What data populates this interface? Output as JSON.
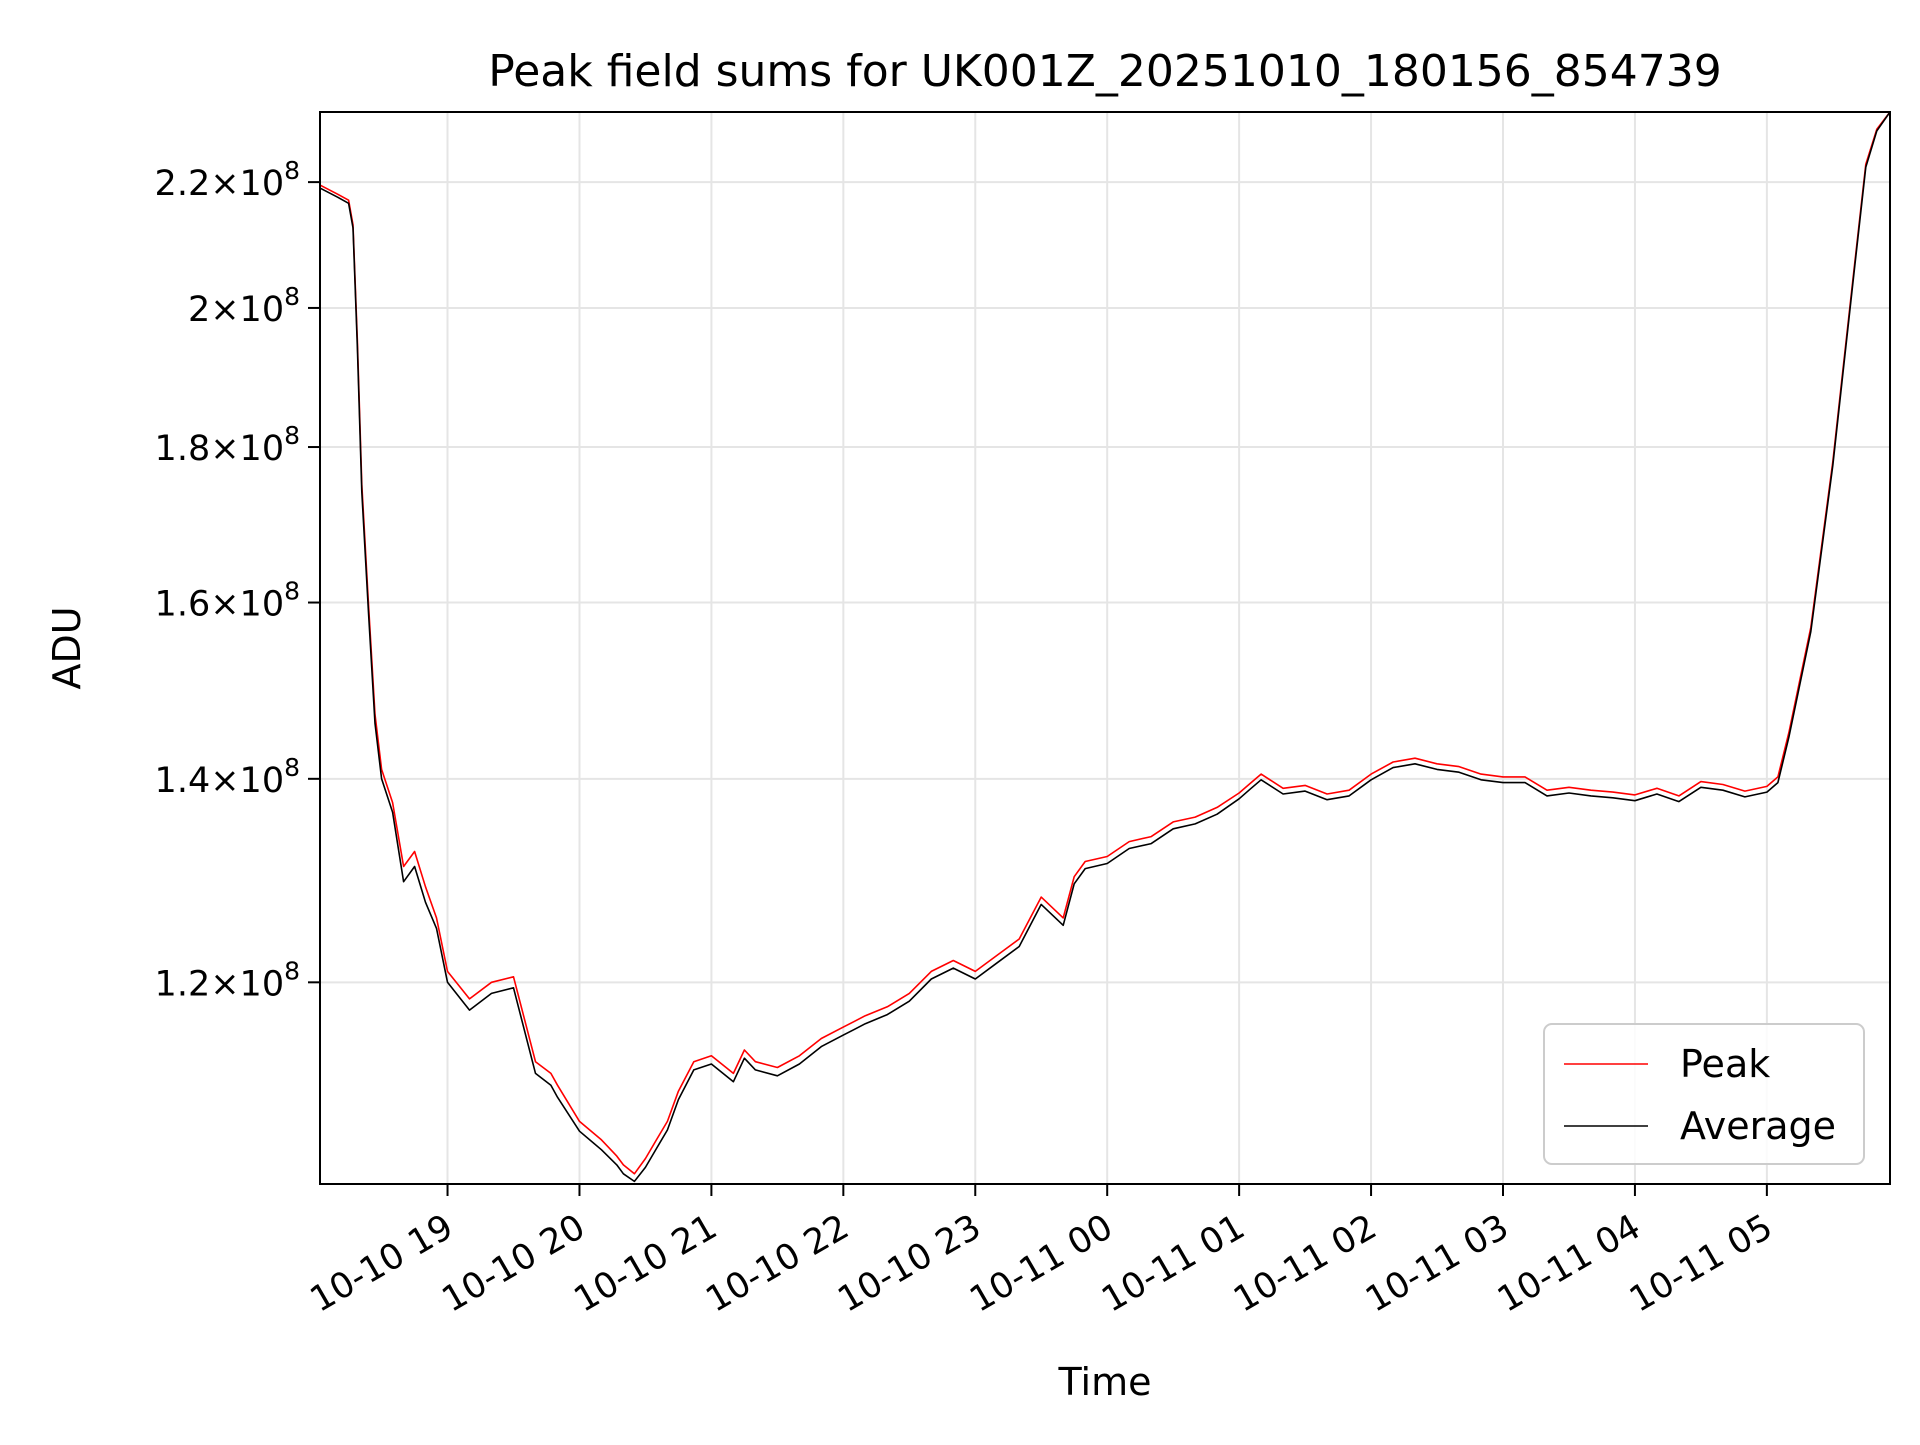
{
  "chart_data": {
    "type": "line",
    "title": "Peak field sums for UK001Z_20251010_180156_854739",
    "xlabel": "Time",
    "ylabel": "ADU",
    "yscale": "log",
    "grid": true,
    "legend_position": "lower-right",
    "xlim": [
      "2025-10-10 18:02",
      "2025-10-11 05:56"
    ],
    "ylim": [
      103000000,
      232000000
    ],
    "x_ticks": [
      {
        "value": "2025-10-10 19:00",
        "label": "10-10 19"
      },
      {
        "value": "2025-10-10 20:00",
        "label": "10-10 20"
      },
      {
        "value": "2025-10-10 21:00",
        "label": "10-10 21"
      },
      {
        "value": "2025-10-10 22:00",
        "label": "10-10 22"
      },
      {
        "value": "2025-10-10 23:00",
        "label": "10-10 23"
      },
      {
        "value": "2025-10-11 00:00",
        "label": "10-11 00"
      },
      {
        "value": "2025-10-11 01:00",
        "label": "10-11 01"
      },
      {
        "value": "2025-10-11 02:00",
        "label": "10-11 02"
      },
      {
        "value": "2025-10-11 03:00",
        "label": "10-11 03"
      },
      {
        "value": "2025-10-11 04:00",
        "label": "10-11 04"
      },
      {
        "value": "2025-10-11 05:00",
        "label": "10-11 05"
      }
    ],
    "y_ticks": [
      {
        "value": 120000000,
        "mantissa": "1.2",
        "exponent": "8"
      },
      {
        "value": 140000000,
        "mantissa": "1.4",
        "exponent": "8"
      },
      {
        "value": 160000000,
        "mantissa": "1.6",
        "exponent": "8"
      },
      {
        "value": 180000000,
        "mantissa": "1.8",
        "exponent": "8"
      },
      {
        "value": 200000000,
        "mantissa": "2",
        "exponent": "8"
      },
      {
        "value": 220000000,
        "mantissa": "2.2",
        "exponent": "8"
      }
    ],
    "series": [
      {
        "name": "Peak",
        "color": "#ff0000",
        "x": [
          "2025-10-10 18:02",
          "2025-10-10 18:10",
          "2025-10-10 18:15",
          "2025-10-10 18:17",
          "2025-10-10 18:19",
          "2025-10-10 18:21",
          "2025-10-10 18:24",
          "2025-10-10 18:27",
          "2025-10-10 18:30",
          "2025-10-10 18:35",
          "2025-10-10 18:40",
          "2025-10-10 18:45",
          "2025-10-10 18:50",
          "2025-10-10 18:55",
          "2025-10-10 19:00",
          "2025-10-10 19:10",
          "2025-10-10 19:20",
          "2025-10-10 19:30",
          "2025-10-10 19:40",
          "2025-10-10 19:47",
          "2025-10-10 19:50",
          "2025-10-10 20:00",
          "2025-10-10 20:10",
          "2025-10-10 20:17",
          "2025-10-10 20:20",
          "2025-10-10 20:25",
          "2025-10-10 20:30",
          "2025-10-10 20:35",
          "2025-10-10 20:40",
          "2025-10-10 20:45",
          "2025-10-10 20:52",
          "2025-10-10 21:00",
          "2025-10-10 21:10",
          "2025-10-10 21:15",
          "2025-10-10 21:20",
          "2025-10-10 21:30",
          "2025-10-10 21:40",
          "2025-10-10 21:50",
          "2025-10-10 22:00",
          "2025-10-10 22:05",
          "2025-10-10 22:10",
          "2025-10-10 22:20",
          "2025-10-10 22:30",
          "2025-10-10 22:40",
          "2025-10-10 22:50",
          "2025-10-10 23:00",
          "2025-10-10 23:10",
          "2025-10-10 23:20",
          "2025-10-10 23:30",
          "2025-10-10 23:40",
          "2025-10-10 23:45",
          "2025-10-10 23:50",
          "2025-10-11 00:00",
          "2025-10-11 00:10",
          "2025-10-11 00:20",
          "2025-10-11 00:30",
          "2025-10-11 00:40",
          "2025-10-11 00:50",
          "2025-10-11 01:00",
          "2025-10-11 01:05",
          "2025-10-11 01:10",
          "2025-10-11 01:20",
          "2025-10-11 01:30",
          "2025-10-11 01:40",
          "2025-10-11 01:50",
          "2025-10-11 02:00",
          "2025-10-11 02:10",
          "2025-10-11 02:20",
          "2025-10-11 02:30",
          "2025-10-11 02:40",
          "2025-10-11 02:50",
          "2025-10-11 03:00",
          "2025-10-11 03:10",
          "2025-10-11 03:20",
          "2025-10-11 03:30",
          "2025-10-11 03:40",
          "2025-10-11 03:50",
          "2025-10-11 04:00",
          "2025-10-11 04:10",
          "2025-10-11 04:20",
          "2025-10-11 04:30",
          "2025-10-11 04:40",
          "2025-10-11 04:50",
          "2025-10-11 05:00",
          "2025-10-11 05:05",
          "2025-10-11 05:10",
          "2025-10-11 05:20",
          "2025-10-11 05:30",
          "2025-10-11 05:35",
          "2025-10-11 05:40",
          "2025-10-11 05:45",
          "2025-10-11 05:50",
          "2025-10-11 05:56"
        ],
        "values": [
          219500000,
          218000000,
          217000000,
          213000000,
          195000000,
          175000000,
          160000000,
          147000000,
          141000000,
          137500000,
          131000000,
          132500000,
          129000000,
          126000000,
          121000000,
          118500000,
          120000000,
          120500000,
          113000000,
          112000000,
          111000000,
          108000000,
          106500000,
          105200000,
          104500000,
          103800000,
          105000000,
          106500000,
          108000000,
          110500000,
          113000000,
          113500000,
          112000000,
          114000000,
          113000000,
          112500000,
          113500000,
          115000000,
          116000000,
          116500000,
          117000000,
          117800000,
          119000000,
          121000000,
          122000000,
          121000000,
          122500000,
          124000000,
          128000000,
          126000000,
          130000000,
          131500000,
          132000000,
          133500000,
          134000000,
          135500000,
          136000000,
          137000000,
          138500000,
          139500000,
          140500000,
          139000000,
          139300000,
          138400000,
          138800000,
          140500000,
          141800000,
          142200000,
          141600000,
          141300000,
          140500000,
          140200000,
          140200000,
          138800000,
          139100000,
          138800000,
          138600000,
          138300000,
          139000000,
          138200000,
          139700000,
          139400000,
          138700000,
          139200000,
          140200000,
          145000000,
          157000000,
          178000000,
          192000000,
          207000000,
          223000000,
          229000000,
          232000000
        ]
      },
      {
        "name": "Average",
        "color": "#000000",
        "x": [
          "2025-10-10 18:02",
          "2025-10-10 18:10",
          "2025-10-10 18:15",
          "2025-10-10 18:17",
          "2025-10-10 18:19",
          "2025-10-10 18:21",
          "2025-10-10 18:24",
          "2025-10-10 18:27",
          "2025-10-10 18:30",
          "2025-10-10 18:35",
          "2025-10-10 18:40",
          "2025-10-10 18:45",
          "2025-10-10 18:50",
          "2025-10-10 18:55",
          "2025-10-10 19:00",
          "2025-10-10 19:10",
          "2025-10-10 19:20",
          "2025-10-10 19:30",
          "2025-10-10 19:40",
          "2025-10-10 19:47",
          "2025-10-10 19:50",
          "2025-10-10 20:00",
          "2025-10-10 20:10",
          "2025-10-10 20:17",
          "2025-10-10 20:20",
          "2025-10-10 20:25",
          "2025-10-10 20:30",
          "2025-10-10 20:35",
          "2025-10-10 20:40",
          "2025-10-10 20:45",
          "2025-10-10 20:52",
          "2025-10-10 21:00",
          "2025-10-10 21:10",
          "2025-10-10 21:15",
          "2025-10-10 21:20",
          "2025-10-10 21:30",
          "2025-10-10 21:40",
          "2025-10-10 21:50",
          "2025-10-10 22:00",
          "2025-10-10 22:05",
          "2025-10-10 22:10",
          "2025-10-10 22:20",
          "2025-10-10 22:30",
          "2025-10-10 22:40",
          "2025-10-10 22:50",
          "2025-10-10 23:00",
          "2025-10-10 23:10",
          "2025-10-10 23:20",
          "2025-10-10 23:30",
          "2025-10-10 23:40",
          "2025-10-10 23:45",
          "2025-10-10 23:50",
          "2025-10-11 00:00",
          "2025-10-11 00:10",
          "2025-10-11 00:20",
          "2025-10-11 00:30",
          "2025-10-11 00:40",
          "2025-10-11 00:50",
          "2025-10-11 01:00",
          "2025-10-11 01:05",
          "2025-10-11 01:10",
          "2025-10-11 01:20",
          "2025-10-11 01:30",
          "2025-10-11 01:40",
          "2025-10-11 01:50",
          "2025-10-11 02:00",
          "2025-10-11 02:10",
          "2025-10-11 02:20",
          "2025-10-11 02:30",
          "2025-10-11 02:40",
          "2025-10-11 02:50",
          "2025-10-11 03:00",
          "2025-10-11 03:10",
          "2025-10-11 03:20",
          "2025-10-11 03:30",
          "2025-10-11 03:40",
          "2025-10-11 03:50",
          "2025-10-11 04:00",
          "2025-10-11 04:10",
          "2025-10-11 04:20",
          "2025-10-11 04:30",
          "2025-10-11 04:40",
          "2025-10-11 04:50",
          "2025-10-11 05:00",
          "2025-10-11 05:05",
          "2025-10-11 05:10",
          "2025-10-11 05:20",
          "2025-10-11 05:30",
          "2025-10-11 05:35",
          "2025-10-11 05:40",
          "2025-10-11 05:45",
          "2025-10-11 05:50",
          "2025-10-11 05:56"
        ],
        "values": [
          219000000,
          217500000,
          216500000,
          212500000,
          194000000,
          174000000,
          159000000,
          146000000,
          140000000,
          136500000,
          129500000,
          131000000,
          127500000,
          125000000,
          120000000,
          117500000,
          119000000,
          119500000,
          112000000,
          111000000,
          110000000,
          107200000,
          105700000,
          104500000,
          103800000,
          103200000,
          104300000,
          105800000,
          107300000,
          109800000,
          112300000,
          112800000,
          111300000,
          113300000,
          112300000,
          111800000,
          112800000,
          114300000,
          115300000,
          115800000,
          116300000,
          117100000,
          118300000,
          120300000,
          121300000,
          120300000,
          121800000,
          123300000,
          127300000,
          125300000,
          129300000,
          130800000,
          131300000,
          132800000,
          133300000,
          134800000,
          135300000,
          136300000,
          137900000,
          138900000,
          139900000,
          138400000,
          138700000,
          137800000,
          138200000,
          139900000,
          141200000,
          141600000,
          141000000,
          140700000,
          139900000,
          139600000,
          139600000,
          138200000,
          138500000,
          138200000,
          138000000,
          137700000,
          138400000,
          137600000,
          139100000,
          138800000,
          138100000,
          138600000,
          139600000,
          144500000,
          156500000,
          177500000,
          191500000,
          206500000,
          222500000,
          228700000,
          232000000
        ]
      }
    ]
  }
}
